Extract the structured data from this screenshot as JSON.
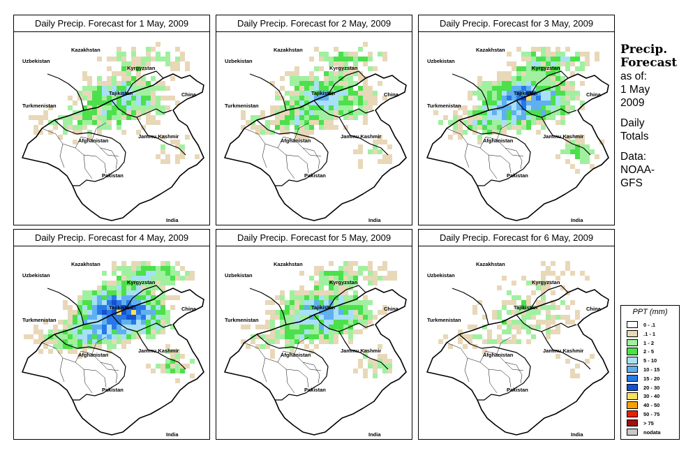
{
  "panels": [
    {
      "title": "Daily Precip. Forecast for  1 May, 2009",
      "intensity": 1.0
    },
    {
      "title": "Daily Precip. Forecast for  2 May, 2009",
      "intensity": 1.1
    },
    {
      "title": "Daily Precip. Forecast for  3 May, 2009",
      "intensity": 1.5
    },
    {
      "title": "Daily Precip. Forecast for  4 May, 2009",
      "intensity": 1.8
    },
    {
      "title": "Daily Precip. Forecast for  5 May, 2009",
      "intensity": 1.2
    },
    {
      "title": "Daily Precip. Forecast for  6 May, 2009",
      "intensity": 0.6
    }
  ],
  "map_labels": {
    "kazakhstan": "Kazakhstan",
    "uzbekistan": "Uzbekistan",
    "kyrgyzstan": "Kyrgyzstan",
    "tajikistan": "Tajikistan",
    "china": "China",
    "turkmenistan": "Turkmenistan",
    "afghanistan": "Afghanistan",
    "jammu_kashmir": "Jammu Kashmir",
    "pakistan": "Pakistan",
    "india": "India"
  },
  "info": {
    "heading_line1": "Precip.",
    "heading_line2": "Forecast",
    "asof_line1": "as of:",
    "asof_line2": "1 May",
    "asof_line3": "2009",
    "totals_line1": "Daily",
    "totals_line2": "Totals",
    "source_line1": "Data:",
    "source_line2": "NOAA-",
    "source_line3": "GFS"
  },
  "legend": {
    "title": "PPT (mm)",
    "items": [
      {
        "label": "0 - .1",
        "color": "#ffffff"
      },
      {
        "label": ".1 - 1",
        "color": "#e8d8b8"
      },
      {
        "label": "1 - 2",
        "color": "#a0f0a0"
      },
      {
        "label": "2 - 5",
        "color": "#4ce04c"
      },
      {
        "label": "5 - 10",
        "color": "#a8e0f8"
      },
      {
        "label": "10 - 15",
        "color": "#60b0f0"
      },
      {
        "label": "15 - 20",
        "color": "#2878e8"
      },
      {
        "label": "20 - 30",
        "color": "#1450d0"
      },
      {
        "label": "30 - 40",
        "color": "#f8e060"
      },
      {
        "label": "40 - 50",
        "color": "#f8a000"
      },
      {
        "label": "50 - 75",
        "color": "#e82000"
      },
      {
        "label": "> 75",
        "color": "#a01010"
      },
      {
        "label": "nodata",
        "color": "#c8c8c8"
      }
    ]
  }
}
